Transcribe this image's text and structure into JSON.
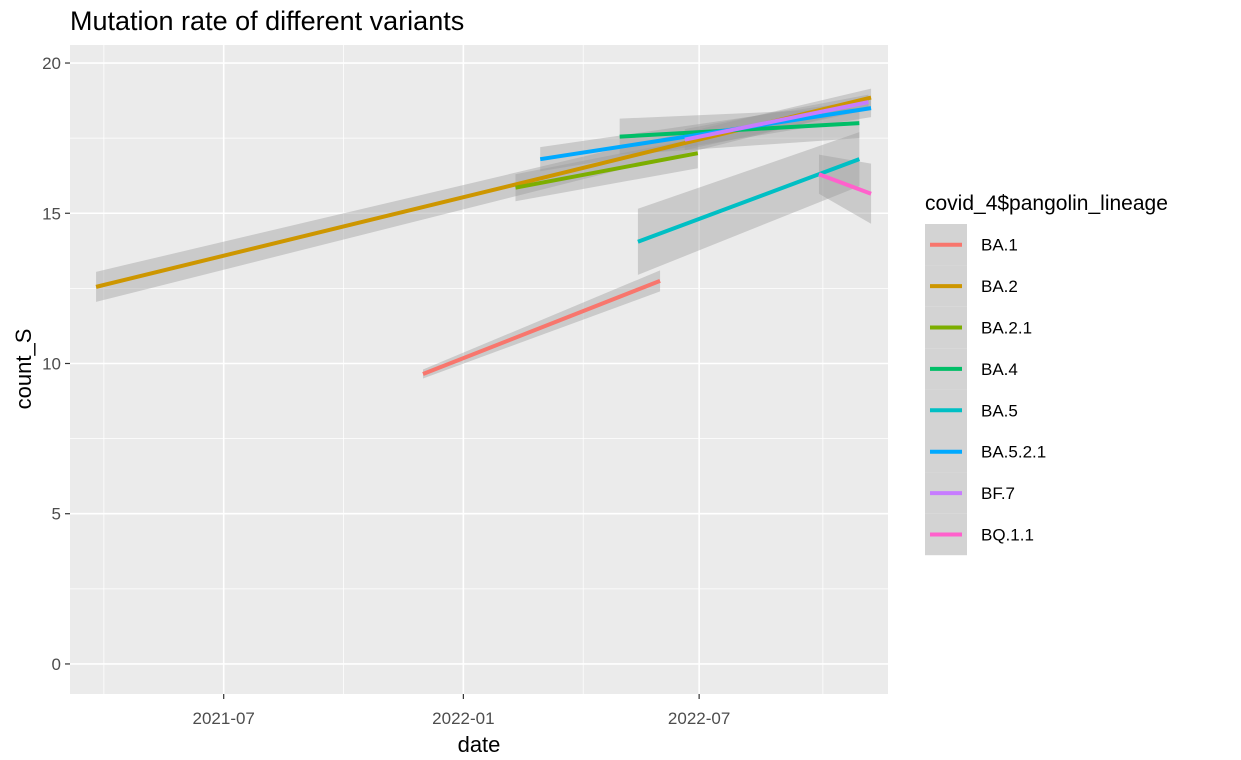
{
  "chart_data": {
    "type": "line",
    "title": "Mutation rate of different variants",
    "xlabel": "date",
    "ylabel": "count_S",
    "x_is_date": true,
    "xlim": [
      "2021-03-05",
      "2022-11-23"
    ],
    "ylim": [
      -1,
      20.6
    ],
    "x_ticks": [
      "2021-07",
      "2022-01",
      "2022-07"
    ],
    "x_tick_dates": [
      "2021-07-01",
      "2022-01-01",
      "2022-07-01"
    ],
    "y_ticks": [
      0,
      5,
      10,
      15,
      20
    ],
    "grid": true,
    "legend": {
      "title": "covid_4$pangolin_lineage",
      "position": "right"
    },
    "series": [
      {
        "name": "BA.1",
        "color": "#F8766D",
        "x": [
          "2021-12-01",
          "2022-06-01"
        ],
        "y": [
          9.65,
          12.75
        ],
        "band": [
          0.15,
          0.35
        ]
      },
      {
        "name": "BA.2",
        "color": "#CD9600",
        "x": [
          "2021-03-25",
          "2022-11-10"
        ],
        "y": [
          12.55,
          18.85
        ],
        "band": [
          0.5,
          0.3
        ]
      },
      {
        "name": "BA.2.1",
        "color": "#7CAE00",
        "x": [
          "2022-02-10",
          "2022-06-30"
        ],
        "y": [
          15.85,
          17.0
        ],
        "band": [
          0.45,
          0.5
        ]
      },
      {
        "name": "BA.4",
        "color": "#00BE67",
        "x": [
          "2022-05-01",
          "2022-11-01"
        ],
        "y": [
          17.55,
          18.0
        ],
        "band": [
          0.6,
          0.5
        ]
      },
      {
        "name": "BA.5",
        "color": "#00BFC4",
        "x": [
          "2022-05-15",
          "2022-11-01"
        ],
        "y": [
          14.05,
          16.8
        ],
        "band": [
          1.1,
          0.9
        ]
      },
      {
        "name": "BA.5.2.1",
        "color": "#00A9FF",
        "x": [
          "2022-03-01",
          "2022-11-10"
        ],
        "y": [
          16.8,
          18.5
        ],
        "band": [
          0.4,
          0.3
        ]
      },
      {
        "name": "BF.7",
        "color": "#C77CFF",
        "x": [
          "2022-06-20",
          "2022-11-08"
        ],
        "y": [
          17.45,
          18.7
        ],
        "band": [
          0.35,
          0.25
        ]
      },
      {
        "name": "BQ.1.1",
        "color": "#FF61CC",
        "x": [
          "2022-10-01",
          "2022-11-10"
        ],
        "y": [
          16.3,
          15.65
        ],
        "band": [
          0.65,
          1.0
        ]
      }
    ]
  }
}
